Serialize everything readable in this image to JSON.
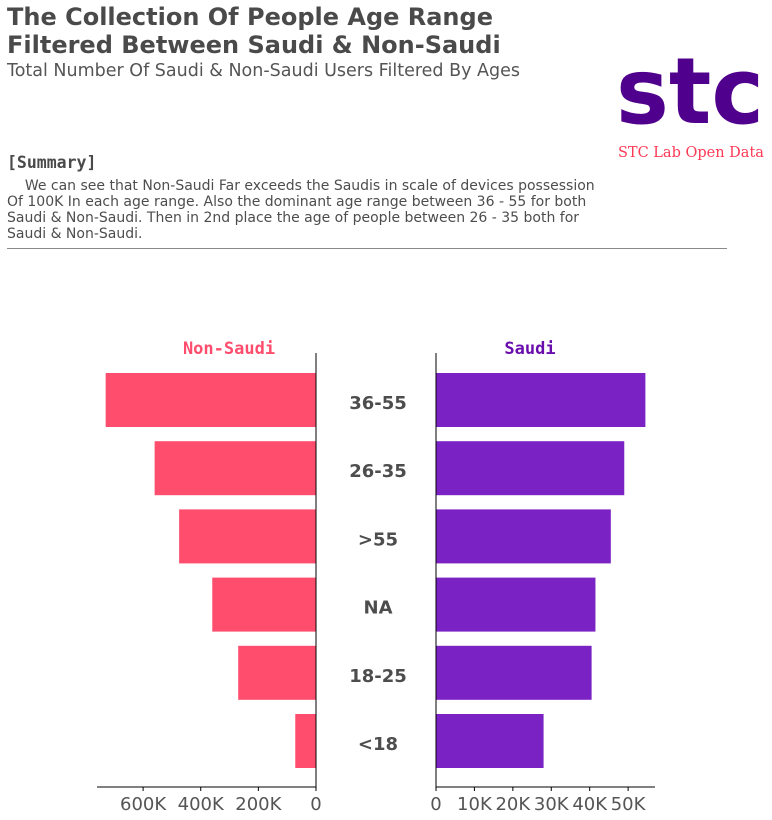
{
  "header": {
    "title": "The Collection Of People Age Range Filtered Between Saudi & Non-Saudi",
    "subtitle": "Total Number Of Saudi & Non-Saudi Users Filtered By Ages"
  },
  "brand": {
    "logo_text": "stc",
    "caption": "STC Lab Open Data",
    "logo_color": "#4f008c",
    "caption_color": "#ff3a55"
  },
  "summary": {
    "heading": "[Summary]",
    "text": "    We can see that Non-Saudi Far exceeds the Saudis in scale of devices possession\nOf 100K In each age range. Also the dominant age range between 36 - 55 for both\nSaudi & Non-Saudi. Then in 2nd place the age of people between 26 - 35 both for\nSaudi & Non-Saudi."
  },
  "chart_data": {
    "type": "bar",
    "orientation": "horizontal",
    "categories": [
      "36-55",
      "26-35",
      ">55",
      "NA",
      "18-25",
      "<18"
    ],
    "series": [
      {
        "name": "Non-Saudi",
        "color": "#ff4d6d",
        "values": [
          730000,
          560000,
          475000,
          360000,
          270000,
          72000
        ],
        "xlim": [
          760000,
          0
        ],
        "ticks": [
          600000,
          400000,
          200000,
          0
        ],
        "tick_labels": [
          "600K",
          "400K",
          "200K",
          "0"
        ]
      },
      {
        "name": "Saudi",
        "color": "#7b22c4",
        "title_color": "#6a0dad",
        "values": [
          54500,
          49000,
          45500,
          41500,
          40500,
          28000
        ],
        "xlim": [
          0,
          57000
        ],
        "ticks": [
          0,
          10000,
          20000,
          30000,
          40000,
          50000
        ],
        "tick_labels": [
          "0",
          "10K",
          "20K",
          "30K",
          "40K",
          "50K"
        ]
      }
    ],
    "grid": false,
    "legend": "none"
  }
}
